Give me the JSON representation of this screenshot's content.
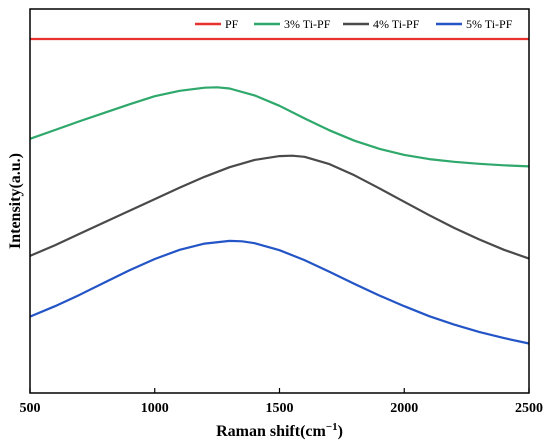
{
  "chart_data": {
    "type": "line",
    "xlabel": "Raman shift(cm",
    "xlabel_sup": "−1",
    "xlabel_close": ")",
    "ylabel": "Intensity(a.u.)",
    "xlim": [
      500,
      2500
    ],
    "ylim": [
      0,
      100
    ],
    "x_ticks": [
      500,
      1000,
      1500,
      2000,
      2500
    ],
    "y_ticks_labeled": false,
    "legend_position": "top-right",
    "grid": false,
    "series": [
      {
        "name": "PF",
        "color": "#e8322f",
        "x": [
          500,
          1000,
          1500,
          2000,
          2500
        ],
        "y": [
          92.2,
          92.2,
          92.2,
          92.2,
          92.2
        ]
      },
      {
        "name": "3% Ti-PF",
        "color": "#2ea86b",
        "x": [
          500,
          600,
          700,
          800,
          900,
          1000,
          1100,
          1200,
          1250,
          1300,
          1400,
          1500,
          1600,
          1700,
          1800,
          1900,
          2000,
          2100,
          2200,
          2300,
          2400,
          2500
        ],
        "y": [
          66.2,
          68.5,
          70.8,
          73.0,
          75.2,
          77.3,
          78.7,
          79.5,
          79.6,
          79.3,
          77.5,
          74.8,
          71.5,
          68.4,
          65.7,
          63.6,
          62.0,
          60.9,
          60.2,
          59.7,
          59.3,
          59.0
        ]
      },
      {
        "name": "4% Ti-PF",
        "color": "#4a4a4a",
        "x": [
          500,
          600,
          700,
          800,
          900,
          1000,
          1100,
          1200,
          1300,
          1400,
          1500,
          1550,
          1600,
          1700,
          1800,
          1900,
          2000,
          2100,
          2200,
          2300,
          2400,
          2500
        ],
        "y": [
          35.7,
          38.5,
          41.5,
          44.5,
          47.5,
          50.5,
          53.5,
          56.3,
          58.8,
          60.7,
          61.7,
          61.8,
          61.5,
          59.6,
          56.7,
          53.3,
          49.8,
          46.3,
          43.0,
          40.0,
          37.3,
          35.0
        ]
      },
      {
        "name": "5% Ti-PF",
        "color": "#2455c6",
        "x": [
          500,
          600,
          700,
          800,
          900,
          1000,
          1100,
          1200,
          1300,
          1350,
          1400,
          1500,
          1600,
          1700,
          1800,
          1900,
          2000,
          2100,
          2200,
          2300,
          2400,
          2500
        ],
        "y": [
          19.9,
          22.6,
          25.6,
          28.8,
          32.0,
          34.9,
          37.3,
          38.9,
          39.6,
          39.5,
          39.0,
          37.2,
          34.6,
          31.6,
          28.4,
          25.4,
          22.6,
          20.0,
          17.8,
          15.9,
          14.3,
          12.9
        ]
      }
    ]
  }
}
